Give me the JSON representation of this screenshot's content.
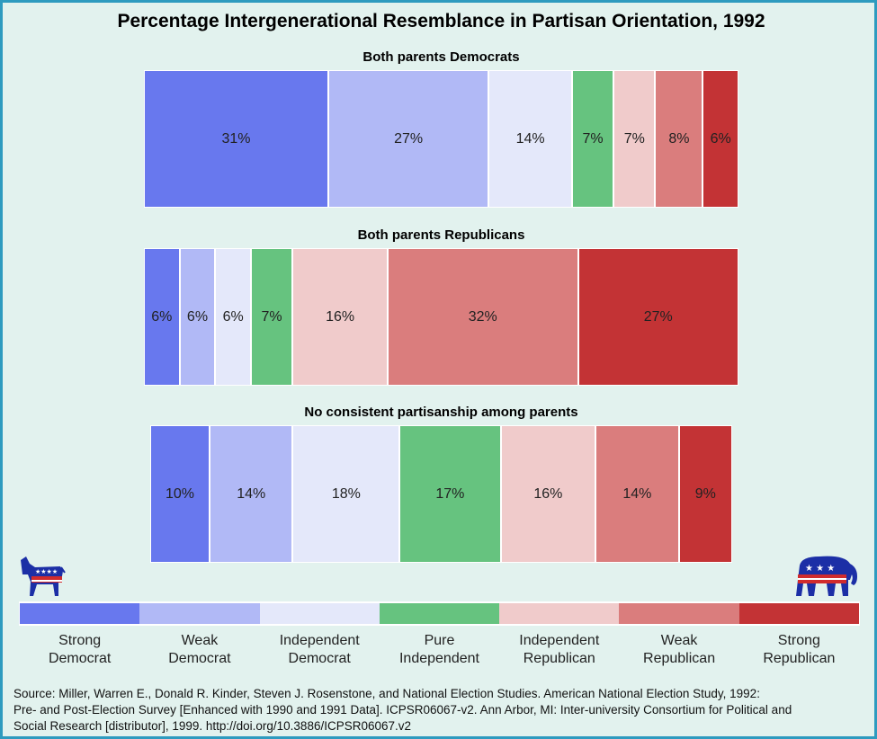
{
  "chart_data": {
    "type": "bar",
    "orientation": "horizontal-stacked",
    "title": "Percentage Intergenerational Resemblance in Partisan Orientation, 1992",
    "categories": [
      "Strong Democrat",
      "Weak Democrat",
      "Independent Democrat",
      "Pure Independent",
      "Independent Republican",
      "Weak Republican",
      "Strong Republican"
    ],
    "colors": [
      "#6878ee",
      "#b1b9f6",
      "#e4e8fa",
      "#66c37f",
      "#f0cbcb",
      "#da7d7d",
      "#c33335"
    ],
    "series": [
      {
        "name": "Both parents Democrats",
        "values": [
          31,
          27,
          14,
          7,
          7,
          8,
          6
        ],
        "labels": [
          "31%",
          "27%",
          "14%",
          "7%",
          "7%",
          "8%",
          "6%"
        ]
      },
      {
        "name": "Both parents Republicans",
        "values": [
          6,
          6,
          6,
          7,
          16,
          32,
          27
        ],
        "labels": [
          "6%",
          "6%",
          "6%",
          "7%",
          "16%",
          "32%",
          "27%"
        ]
      },
      {
        "name": "No consistent partisanship among parents",
        "values": [
          10,
          14,
          18,
          17,
          16,
          14,
          9
        ],
        "labels": [
          "10%",
          "14%",
          "18%",
          "17%",
          "16%",
          "14%",
          "9%"
        ]
      }
    ],
    "legend": {
      "placement": "bottom",
      "labels": [
        [
          "Strong",
          "Democrat"
        ],
        [
          "Weak",
          "Democrat"
        ],
        [
          "Independent",
          "Democrat"
        ],
        [
          "Pure",
          "Independent"
        ],
        [
          "Independent",
          "Republican"
        ],
        [
          "Weak",
          "Republican"
        ],
        [
          "Strong",
          "Republican"
        ]
      ]
    },
    "source": [
      "Source: Miller, Warren E., Donald R. Kinder, Steven J. Rosenstone, and National Election Studies. American National Election Study, 1992:",
      "Pre- and Post-Election Survey [Enhanced with 1990 and 1991 Data]. ICPSR06067-v2. Ann Arbor, MI: Inter-university Consortium for Political and",
      "Social Research [distributor], 1999. http://doi.org/10.3886/ICPSR06067.v2"
    ]
  },
  "icons": {
    "left": "democratic-donkey-icon",
    "right": "republican-elephant-icon"
  }
}
